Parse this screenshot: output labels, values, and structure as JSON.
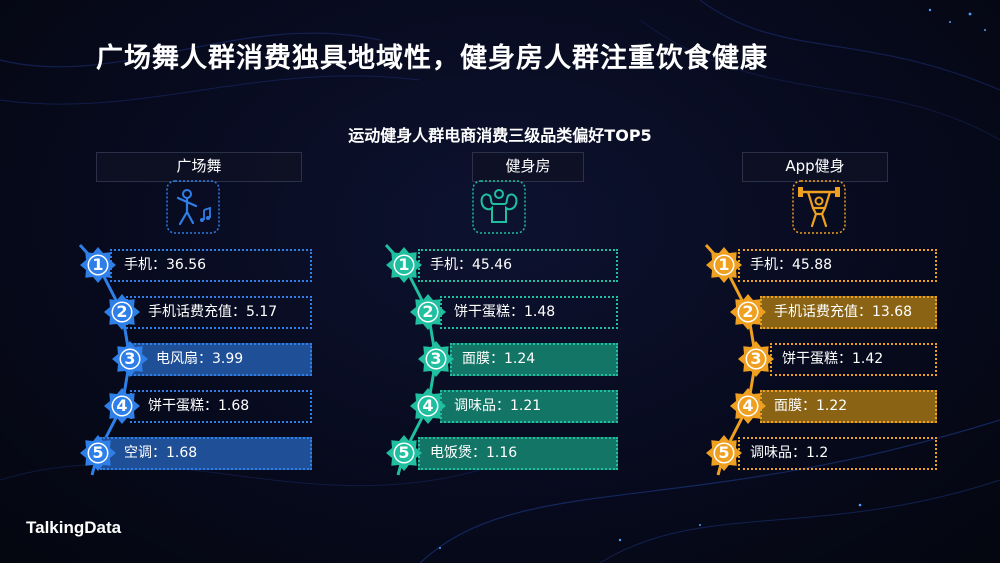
{
  "title": "广场舞人群消费独具地域性，健身房人群注重饮食健康",
  "logo": "TalkingData",
  "chart_data": {
    "type": "table",
    "title": "运动健身人群电商消费三级品类偏好TOP5",
    "groups": [
      {
        "name": "广场舞",
        "icon": "dancer-icon",
        "color": "#2f7fe8",
        "fill": "#1f4f96",
        "items": [
          {
            "rank": "1",
            "label": "手机：36.56",
            "category": "手机",
            "value": 36.56
          },
          {
            "rank": "2",
            "label": "手机话费充值：5.17",
            "category": "手机话费充值",
            "value": 5.17
          },
          {
            "rank": "3",
            "label": "电风扇：3.99",
            "category": "电风扇",
            "value": 3.99
          },
          {
            "rank": "4",
            "label": "饼干蛋糕：1.68",
            "category": "饼干蛋糕",
            "value": 1.68
          },
          {
            "rank": "5",
            "label": "空调：1.68",
            "category": "空调",
            "value": 1.68
          }
        ],
        "filled_rows": [
          false,
          false,
          true,
          false,
          true
        ]
      },
      {
        "name": "健身房",
        "icon": "muscle-icon",
        "color": "#1fbf9f",
        "fill": "#137566",
        "items": [
          {
            "rank": "1",
            "label": "手机：45.46",
            "category": "手机",
            "value": 45.46
          },
          {
            "rank": "2",
            "label": "饼干蛋糕：1.48",
            "category": "饼干蛋糕",
            "value": 1.48
          },
          {
            "rank": "3",
            "label": "面膜：1.24",
            "category": "面膜",
            "value": 1.24
          },
          {
            "rank": "4",
            "label": "调味品：1.21",
            "category": "调味品",
            "value": 1.21
          },
          {
            "rank": "5",
            "label": "电饭煲：1.16",
            "category": "电饭煲",
            "value": 1.16
          }
        ],
        "filled_rows": [
          false,
          false,
          true,
          true,
          true
        ]
      },
      {
        "name": "App健身",
        "icon": "weightlifter-icon",
        "color": "#f0a020",
        "fill": "#8a6414",
        "items": [
          {
            "rank": "1",
            "label": "手机：45.88",
            "category": "手机",
            "value": 45.88
          },
          {
            "rank": "2",
            "label": "手机话费充值：13.68",
            "category": "手机话费充值",
            "value": 13.68
          },
          {
            "rank": "3",
            "label": "饼干蛋糕：1.42",
            "category": "饼干蛋糕",
            "value": 1.42
          },
          {
            "rank": "4",
            "label": "面膜：1.22",
            "category": "面膜",
            "value": 1.22
          },
          {
            "rank": "5",
            "label": "调味品：1.2",
            "category": "调味品",
            "value": 1.2
          }
        ],
        "filled_rows": [
          false,
          true,
          false,
          true,
          false
        ]
      }
    ]
  }
}
